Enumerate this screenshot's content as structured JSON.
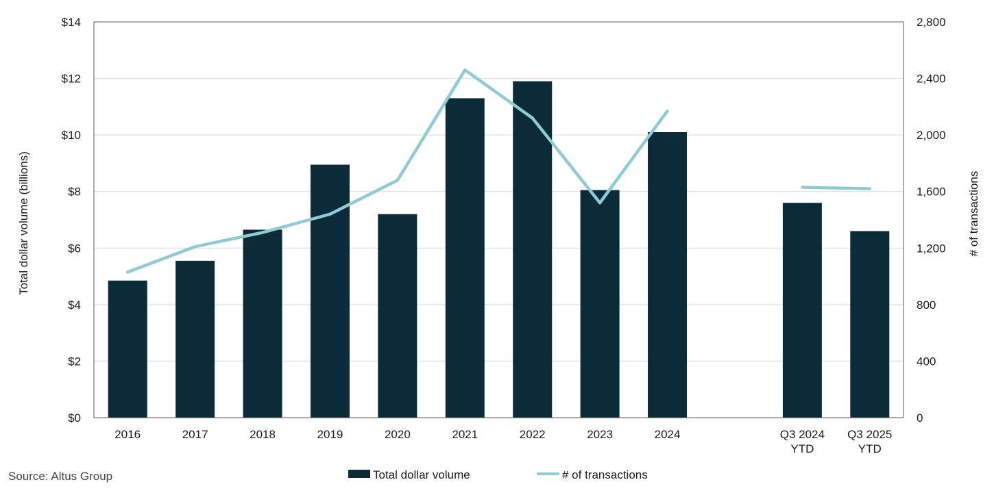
{
  "chart_data": {
    "type": "bar",
    "categories": [
      "2016",
      "2017",
      "2018",
      "2019",
      "2020",
      "2021",
      "2022",
      "2023",
      "2024",
      "",
      "Q3 2024\nYTD",
      "Q3 2025\nYTD"
    ],
    "series": [
      {
        "name": "Total dollar volume",
        "type": "bar",
        "axis": "left",
        "color": "#0b2b38",
        "values": [
          4.85,
          5.55,
          6.65,
          8.95,
          7.2,
          11.3,
          11.9,
          8.05,
          10.1,
          null,
          7.6,
          6.6
        ]
      },
      {
        "name": "# of transactions",
        "type": "line",
        "axis": "right",
        "color": "#8ecbd2",
        "values": [
          1030,
          1210,
          1310,
          1440,
          1680,
          2460,
          2120,
          1520,
          2170,
          null,
          1630,
          1620
        ]
      }
    ],
    "y_left": {
      "label": "Total dollar volume (billions)",
      "range": [
        0,
        14
      ],
      "ticks": [
        0,
        2,
        4,
        6,
        8,
        10,
        12,
        14
      ],
      "tick_labels": [
        "$0",
        "$2",
        "$4",
        "$6",
        "$8",
        "$10",
        "$12",
        "$14"
      ]
    },
    "y_right": {
      "label": "# of transactions",
      "range": [
        0,
        2800
      ],
      "ticks": [
        0,
        400,
        800,
        1200,
        1600,
        2000,
        2400,
        2800
      ],
      "tick_labels": [
        "0",
        "400",
        "800",
        "1,200",
        "1,600",
        "2,000",
        "2,400",
        "2,800"
      ]
    },
    "grid": true,
    "legend": "bottom-center",
    "source": "Source:  Altus Group"
  }
}
